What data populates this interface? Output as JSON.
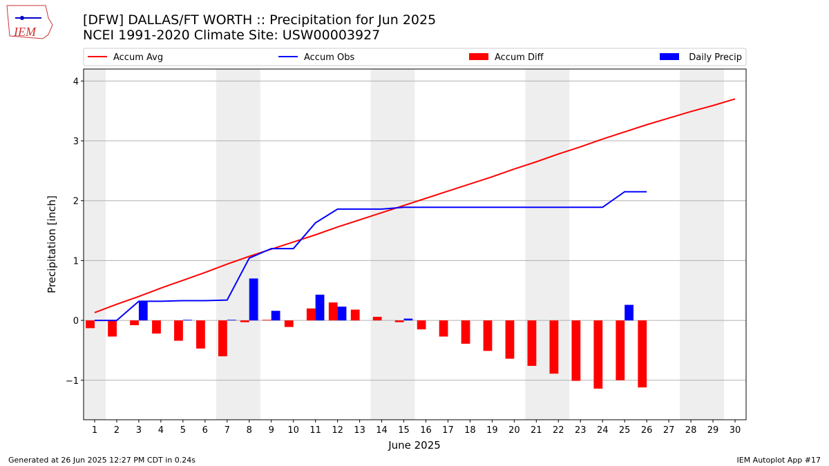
{
  "chart_data": {
    "type": "bar-line",
    "title": "[DFW] DALLAS/FT WORTH :: Precipitation for Jun 2025",
    "subtitle": "NCEI 1991-2020 Climate Site: USW00003927",
    "logo": "IEM",
    "x_label": "June 2025",
    "y_label": "Precipitation [inch]",
    "footer_left": "Generated at 26 Jun 2025 12:27 PM CDT in 0.24s",
    "footer_right": "IEM Autoplot App #17",
    "x": [
      1,
      2,
      3,
      4,
      5,
      6,
      7,
      8,
      9,
      10,
      11,
      12,
      13,
      14,
      15,
      16,
      17,
      18,
      19,
      20,
      21,
      22,
      23,
      24,
      25,
      26,
      27,
      28,
      29,
      30
    ],
    "xlim": [
      0.5,
      30.5
    ],
    "xticks": [
      1,
      2,
      3,
      4,
      5,
      6,
      7,
      8,
      9,
      10,
      11,
      12,
      13,
      14,
      15,
      16,
      17,
      18,
      19,
      20,
      21,
      22,
      23,
      24,
      25,
      26,
      27,
      28,
      29,
      30
    ],
    "ylim": [
      -1.66,
      4.2
    ],
    "yticks": [
      {
        "value": -1,
        "label": "−1"
      },
      0,
      1,
      2,
      3,
      4
    ],
    "grid": true,
    "shaded_spans": [
      [
        0.5,
        1.5
      ],
      [
        6.5,
        8.5
      ],
      [
        13.5,
        15.5
      ],
      [
        20.5,
        22.5
      ],
      [
        27.5,
        29.5
      ]
    ],
    "series": [
      {
        "name": "Accum Avg",
        "kind": "line",
        "color": "#ff0000",
        "values": [
          0.13,
          0.27,
          0.4,
          0.54,
          0.67,
          0.8,
          0.94,
          1.07,
          1.19,
          1.31,
          1.43,
          1.56,
          1.68,
          1.8,
          1.92,
          2.04,
          2.16,
          2.28,
          2.4,
          2.53,
          2.65,
          2.78,
          2.9,
          3.03,
          3.15,
          3.27,
          3.38,
          3.49,
          3.59,
          3.7
        ]
      },
      {
        "name": "Accum Obs",
        "kind": "line",
        "color": "#0000ff",
        "values": [
          0,
          0,
          0.32,
          0.32,
          0.33,
          0.33,
          0.34,
          1.04,
          1.2,
          1.2,
          1.63,
          1.86,
          1.86,
          1.86,
          1.89,
          1.89,
          1.89,
          1.89,
          1.89,
          1.89,
          1.89,
          1.89,
          1.89,
          1.89,
          2.15,
          2.15,
          null,
          null,
          null,
          null
        ]
      },
      {
        "name": "Accum Diff",
        "kind": "bar",
        "color": "#ff0000",
        "values": [
          -0.13,
          -0.27,
          -0.08,
          -0.22,
          -0.34,
          -0.47,
          -0.6,
          -0.03,
          0.01,
          -0.11,
          0.2,
          0.3,
          0.18,
          0.06,
          -0.03,
          -0.15,
          -0.27,
          -0.39,
          -0.51,
          -0.64,
          -0.76,
          -0.89,
          -1.01,
          -1.14,
          -1.0,
          -1.12,
          null,
          null,
          null,
          null
        ]
      },
      {
        "name": "Daily Precip",
        "kind": "bar",
        "color": "#0000ff",
        "values": [
          0,
          0,
          0.32,
          0,
          0.01,
          0,
          0.01,
          0.7,
          0.16,
          0,
          0.43,
          0.23,
          0,
          0,
          0.03,
          0,
          0,
          0,
          0,
          0,
          0,
          0,
          0,
          0,
          0.26,
          0,
          null,
          null,
          null,
          null
        ]
      }
    ]
  }
}
